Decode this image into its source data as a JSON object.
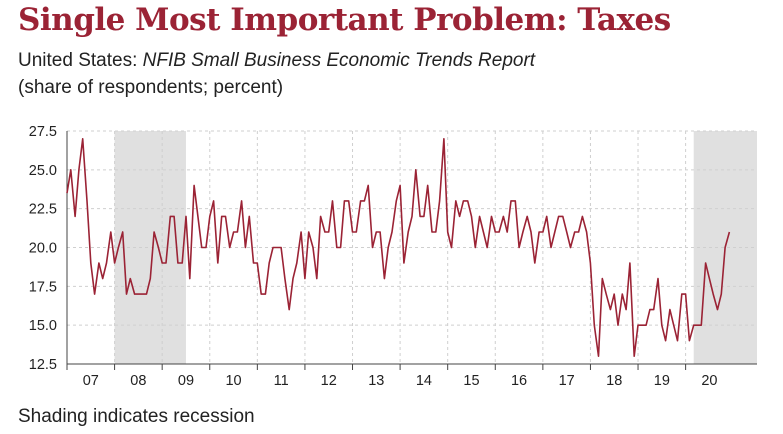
{
  "header": {
    "title": "Single Most Important Problem: Taxes",
    "subtitle_prefix": "United States: ",
    "subtitle_source": "NFIB Small Business Economic Trends Report",
    "units": "(share of respondents; percent)"
  },
  "footnote": "Shading indicates recession",
  "colors": {
    "title": "#9b2335",
    "line": "#9b2335",
    "recession": "#e0e0e0",
    "grid": "#cfcfcf"
  },
  "chart_data": {
    "type": "line",
    "title": "Single Most Important Problem: Taxes",
    "ylabel": "",
    "xlabel": "",
    "ylim": [
      12.5,
      27.5
    ],
    "yticks": [
      "12.5",
      "15.0",
      "17.5",
      "20.0",
      "22.5",
      "25.0",
      "27.5"
    ],
    "xlim": [
      2006.5,
      2021.0
    ],
    "xticks": [
      {
        "label": "07",
        "x": 2007
      },
      {
        "label": "08",
        "x": 2008
      },
      {
        "label": "09",
        "x": 2009
      },
      {
        "label": "10",
        "x": 2010
      },
      {
        "label": "11",
        "x": 2011
      },
      {
        "label": "12",
        "x": 2012
      },
      {
        "label": "13",
        "x": 2013
      },
      {
        "label": "14",
        "x": 2014
      },
      {
        "label": "15",
        "x": 2015
      },
      {
        "label": "16",
        "x": 2016
      },
      {
        "label": "17",
        "x": 2017
      },
      {
        "label": "18",
        "x": 2018
      },
      {
        "label": "19",
        "x": 2019
      },
      {
        "label": "20",
        "x": 2020
      }
    ],
    "grid": true,
    "recessions": [
      [
        2007.5,
        2009.0
      ],
      [
        2019.67,
        2021.0
      ]
    ],
    "series": [
      {
        "values": [
          [
            2006.5,
            23.5
          ],
          [
            2006.58,
            25
          ],
          [
            2006.67,
            22
          ],
          [
            2006.75,
            25
          ],
          [
            2006.83,
            27
          ],
          [
            2006.92,
            23
          ],
          [
            2007.0,
            19
          ],
          [
            2007.08,
            17
          ],
          [
            2007.17,
            19
          ],
          [
            2007.25,
            18
          ],
          [
            2007.33,
            19
          ],
          [
            2007.42,
            21
          ],
          [
            2007.5,
            19
          ],
          [
            2007.58,
            20
          ],
          [
            2007.67,
            21
          ],
          [
            2007.75,
            17
          ],
          [
            2007.83,
            18
          ],
          [
            2007.92,
            17
          ],
          [
            2008.0,
            17
          ],
          [
            2008.08,
            17
          ],
          [
            2008.17,
            17
          ],
          [
            2008.25,
            18
          ],
          [
            2008.33,
            21
          ],
          [
            2008.42,
            20
          ],
          [
            2008.5,
            19
          ],
          [
            2008.58,
            19
          ],
          [
            2008.67,
            22
          ],
          [
            2008.75,
            22
          ],
          [
            2008.83,
            19
          ],
          [
            2008.92,
            19
          ],
          [
            2009.0,
            22
          ],
          [
            2009.08,
            18
          ],
          [
            2009.17,
            24
          ],
          [
            2009.25,
            22
          ],
          [
            2009.33,
            20
          ],
          [
            2009.42,
            20
          ],
          [
            2009.5,
            22
          ],
          [
            2009.58,
            23
          ],
          [
            2009.67,
            19
          ],
          [
            2009.75,
            22
          ],
          [
            2009.83,
            22
          ],
          [
            2009.92,
            20
          ],
          [
            2010.0,
            21
          ],
          [
            2010.08,
            21
          ],
          [
            2010.17,
            23
          ],
          [
            2010.25,
            20
          ],
          [
            2010.33,
            22
          ],
          [
            2010.42,
            19
          ],
          [
            2010.5,
            19
          ],
          [
            2010.58,
            17
          ],
          [
            2010.67,
            17
          ],
          [
            2010.75,
            19
          ],
          [
            2010.83,
            20
          ],
          [
            2010.92,
            20
          ],
          [
            2011.0,
            20
          ],
          [
            2011.08,
            18
          ],
          [
            2011.17,
            16
          ],
          [
            2011.25,
            18
          ],
          [
            2011.33,
            19
          ],
          [
            2011.42,
            21
          ],
          [
            2011.5,
            18
          ],
          [
            2011.58,
            21
          ],
          [
            2011.67,
            20
          ],
          [
            2011.75,
            18
          ],
          [
            2011.83,
            22
          ],
          [
            2011.92,
            21
          ],
          [
            2012.0,
            21
          ],
          [
            2012.08,
            23
          ],
          [
            2012.17,
            20
          ],
          [
            2012.25,
            20
          ],
          [
            2012.33,
            23
          ],
          [
            2012.42,
            23
          ],
          [
            2012.5,
            21
          ],
          [
            2012.58,
            21
          ],
          [
            2012.67,
            23
          ],
          [
            2012.75,
            23
          ],
          [
            2012.83,
            24
          ],
          [
            2012.92,
            20
          ],
          [
            2013.0,
            21
          ],
          [
            2013.08,
            21
          ],
          [
            2013.17,
            18
          ],
          [
            2013.25,
            20
          ],
          [
            2013.33,
            21
          ],
          [
            2013.42,
            23
          ],
          [
            2013.5,
            24
          ],
          [
            2013.58,
            19
          ],
          [
            2013.67,
            21
          ],
          [
            2013.75,
            22
          ],
          [
            2013.83,
            25
          ],
          [
            2013.92,
            22
          ],
          [
            2014.0,
            22
          ],
          [
            2014.08,
            24
          ],
          [
            2014.17,
            21
          ],
          [
            2014.25,
            21
          ],
          [
            2014.33,
            23
          ],
          [
            2014.42,
            27
          ],
          [
            2014.5,
            21
          ],
          [
            2014.58,
            20
          ],
          [
            2014.67,
            23
          ],
          [
            2014.75,
            22
          ],
          [
            2014.83,
            23
          ],
          [
            2014.92,
            23
          ],
          [
            2015.0,
            22
          ],
          [
            2015.08,
            20
          ],
          [
            2015.17,
            22
          ],
          [
            2015.25,
            21
          ],
          [
            2015.33,
            20
          ],
          [
            2015.42,
            22
          ],
          [
            2015.5,
            21
          ],
          [
            2015.58,
            21
          ],
          [
            2015.67,
            22
          ],
          [
            2015.75,
            21
          ],
          [
            2015.83,
            23
          ],
          [
            2015.92,
            23
          ],
          [
            2016.0,
            20
          ],
          [
            2016.08,
            21
          ],
          [
            2016.17,
            22
          ],
          [
            2016.25,
            21
          ],
          [
            2016.33,
            19
          ],
          [
            2016.42,
            21
          ],
          [
            2016.5,
            21
          ],
          [
            2016.58,
            22
          ],
          [
            2016.67,
            20
          ],
          [
            2016.75,
            21
          ],
          [
            2016.83,
            22
          ],
          [
            2016.92,
            22
          ],
          [
            2017.0,
            21
          ],
          [
            2017.08,
            20
          ],
          [
            2017.17,
            21
          ],
          [
            2017.25,
            21
          ],
          [
            2017.33,
            22
          ],
          [
            2017.42,
            21
          ],
          [
            2017.5,
            19
          ],
          [
            2017.58,
            15
          ],
          [
            2017.67,
            13
          ],
          [
            2017.75,
            18
          ],
          [
            2017.83,
            17
          ],
          [
            2017.92,
            16
          ],
          [
            2018.0,
            17
          ],
          [
            2018.08,
            15
          ],
          [
            2018.17,
            17
          ],
          [
            2018.25,
            16
          ],
          [
            2018.33,
            19
          ],
          [
            2018.42,
            13
          ],
          [
            2018.5,
            15
          ],
          [
            2018.58,
            15
          ],
          [
            2018.67,
            15
          ],
          [
            2018.75,
            16
          ],
          [
            2018.83,
            16
          ],
          [
            2018.92,
            18
          ],
          [
            2019.0,
            15
          ],
          [
            2019.08,
            14
          ],
          [
            2019.17,
            16
          ],
          [
            2019.25,
            15
          ],
          [
            2019.33,
            14
          ],
          [
            2019.42,
            17
          ],
          [
            2019.5,
            17
          ],
          [
            2019.58,
            14
          ],
          [
            2019.67,
            15
          ],
          [
            2019.75,
            15
          ],
          [
            2019.83,
            15
          ],
          [
            2019.92,
            19
          ],
          [
            2020.0,
            18
          ],
          [
            2020.08,
            17
          ],
          [
            2020.17,
            16
          ],
          [
            2020.25,
            17
          ],
          [
            2020.33,
            20
          ],
          [
            2020.42,
            21
          ]
        ]
      }
    ]
  }
}
